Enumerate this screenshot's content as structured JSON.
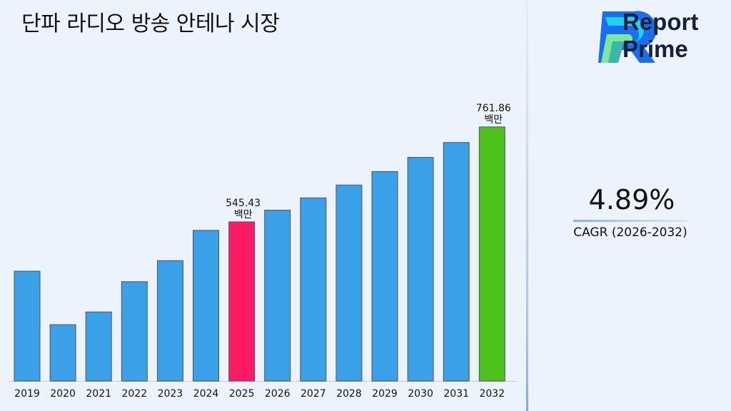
{
  "chart_data": {
    "type": "bar",
    "title": "단파 라디오 방송 안테나 시장",
    "categories": [
      "2019",
      "2020",
      "2021",
      "2022",
      "2023",
      "2024",
      "2025",
      "2026",
      "2027",
      "2028",
      "2029",
      "2030",
      "2031",
      "2032"
    ],
    "values": [
      433,
      311,
      340,
      409,
      457,
      526,
      545.43,
      572.1,
      600.1,
      629.4,
      660.2,
      692.5,
      726.4,
      761.86
    ],
    "unit": "백만",
    "data_labels": [
      {
        "category": "2025",
        "value": "545.43",
        "unit": "백만"
      },
      {
        "category": "2032",
        "value": "761.86",
        "unit": "백만"
      }
    ],
    "colors": {
      "default": "#3aa0e8",
      "highlight_2025": "#ff1a66",
      "highlight_2032": "#4cc31a"
    },
    "ylim": [
      182.5,
      800
    ],
    "grid": false
  },
  "brand": {
    "name_line1": "Report",
    "name_line2": "Prime"
  },
  "cagr": {
    "value": "4.89%",
    "label": "CAGR (2026-2032)"
  }
}
